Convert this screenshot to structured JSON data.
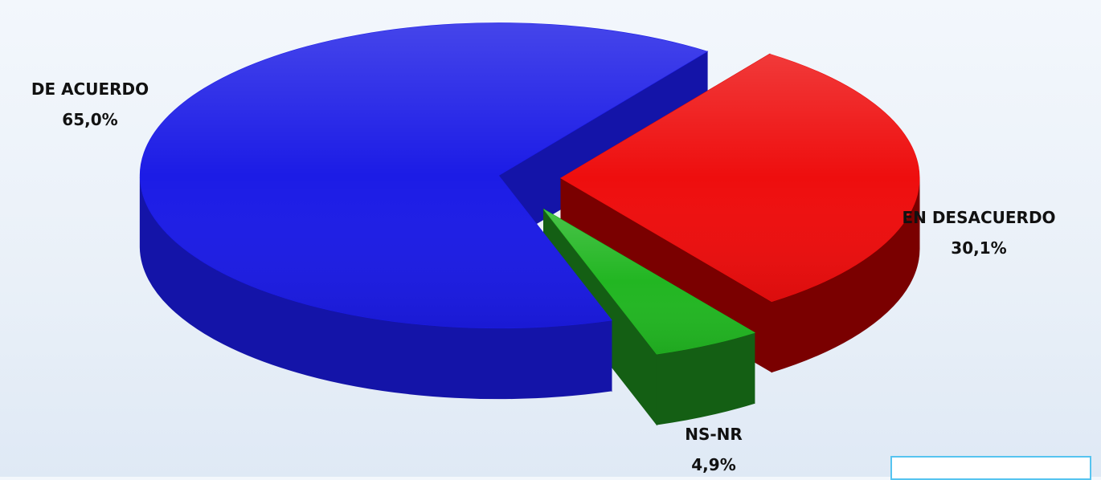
{
  "chart_data": {
    "type": "pie",
    "style": "3d-exploded",
    "slices": [
      {
        "label": "DE ACUERDO",
        "value": 65.0,
        "value_label": "65,0%",
        "color": "#1c1ce6",
        "side_color": "#1414a8"
      },
      {
        "label": "EN DESACUERDO",
        "value": 30.1,
        "value_label": "30,1%",
        "color": "#ee0e0e",
        "side_color": "#7a0000"
      },
      {
        "label": "NS-NR",
        "value": 4.9,
        "value_label": "4,9%",
        "color": "#22b622",
        "side_color": "#145f14"
      }
    ],
    "legend": "none",
    "grid": false
  },
  "background": {
    "color": "#eaf1f9",
    "corner_box_border": "#56c4f0"
  }
}
